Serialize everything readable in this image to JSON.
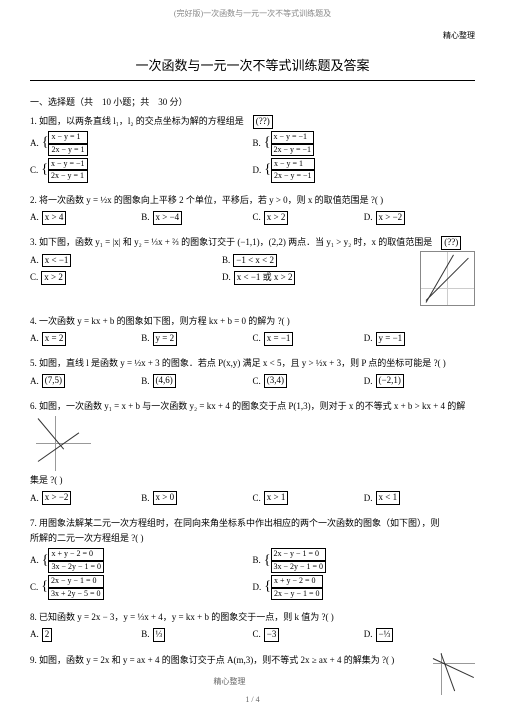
{
  "header": {
    "top": "(完好版)一次函数与一元一次不等式训练题及",
    "right": "精心整理",
    "title": "一次函数与一元一次不等式训练题及答案"
  },
  "section": "一、选择题（共　10 小题；共　30 分）",
  "q1": {
    "text": "1. 如图，以两条直线 l₁，l₂ 的交点坐标为解的方程组是",
    "blank": "(??)",
    "a": "x − y = 1",
    "a2": "2x − y = 1",
    "b": "x − y = −1",
    "b2": "2x − y = −1",
    "c": "x − y = −1",
    "c2": "2x − y = 1",
    "d": "x − y = 1",
    "d2": "2x − y = −1"
  },
  "q2": {
    "text": "2. 将一次函数 y = ½x 的图象向上平移 2 个单位，平移后，若 y > 0，则 x 的取值范围是",
    "tail": "?( )",
    "a": "x > 4",
    "b": "x > −4",
    "c": "x > 2",
    "d": "x > −2"
  },
  "q3": {
    "text": "3. 如下图，函数 y₁ = |x| 和 y₂ = ⅓x + ⅔ 的图象订交于 (−1,1)，(2,2) 两点．当 y₁ > y₂ 时，x 的取值范围是",
    "blank": "(??)",
    "a": "x < −1",
    "b": "−1 < x < 2",
    "c": "x > 2",
    "d": "x < −1 或 x > 2"
  },
  "q4": {
    "text": "4. 一次函数 y = kx + b 的图象如下图，则方程 kx + b = 0 的解为",
    "tail": "?( )",
    "a": "x = 2",
    "b": "y = 2",
    "c": "x = −1",
    "d": "y = −1"
  },
  "q5": {
    "text": "5. 如图，直线 l 是函数 y = ½x + 3 的图象．若点 P(x,y) 满足 x < 5，且 y > ½x + 3，则 P 点的坐标可能是",
    "tail": "?( )",
    "a": "(7,5)",
    "b": "(4,6)",
    "c": "(3,4)",
    "d": "(−2,1)"
  },
  "q6": {
    "text": "6. 如图，一次函数 y₁ = x + b 与一次函数 y₂ = kx + 4 的图象交于点 P(1,3)，则对于 x 的不等式 x + b > kx + 4 的解",
    "text2": "集是 ?( )",
    "a": "x > −2",
    "b": "x > 0",
    "c": "x > 1",
    "d": "x < 1"
  },
  "q7": {
    "text": "7. 用图象法解某二元一次方程组时，在同向来角坐标系中作出相应的两个一次函数的图象（如下图），则",
    "text2": "所解的二元一次方程组是 ?( )",
    "a": "x + y − 2 = 0",
    "a2": "3x − 2y − 1 = 0",
    "b": "2x − y − 1 = 0",
    "b2": "3x − 2y − 1 = 0",
    "c": "2x − y − 1 = 0",
    "c2": "3x + 2y − 5 = 0",
    "d": "x + y − 2 = 0",
    "d2": "2x − y − 1 = 0"
  },
  "q8": {
    "text": "8. 已知函数 y = 2x − 3，y = ⅓x + 4，y = kx + b 的图象交于一点，则 k 值为",
    "tail": "?( )",
    "a": "2",
    "b": "⅓",
    "c": "−3",
    "d": "−⅓"
  },
  "q9": {
    "text": "9. 如图，函数 y = 2x 和 y = ax + 4 的图象订交于点 A(m,3)，则不等式 2x ≥ ax + 4 的解集为",
    "tail": "?( )"
  },
  "footer": {
    "a": "精心整理",
    "b": "1 / 4"
  }
}
